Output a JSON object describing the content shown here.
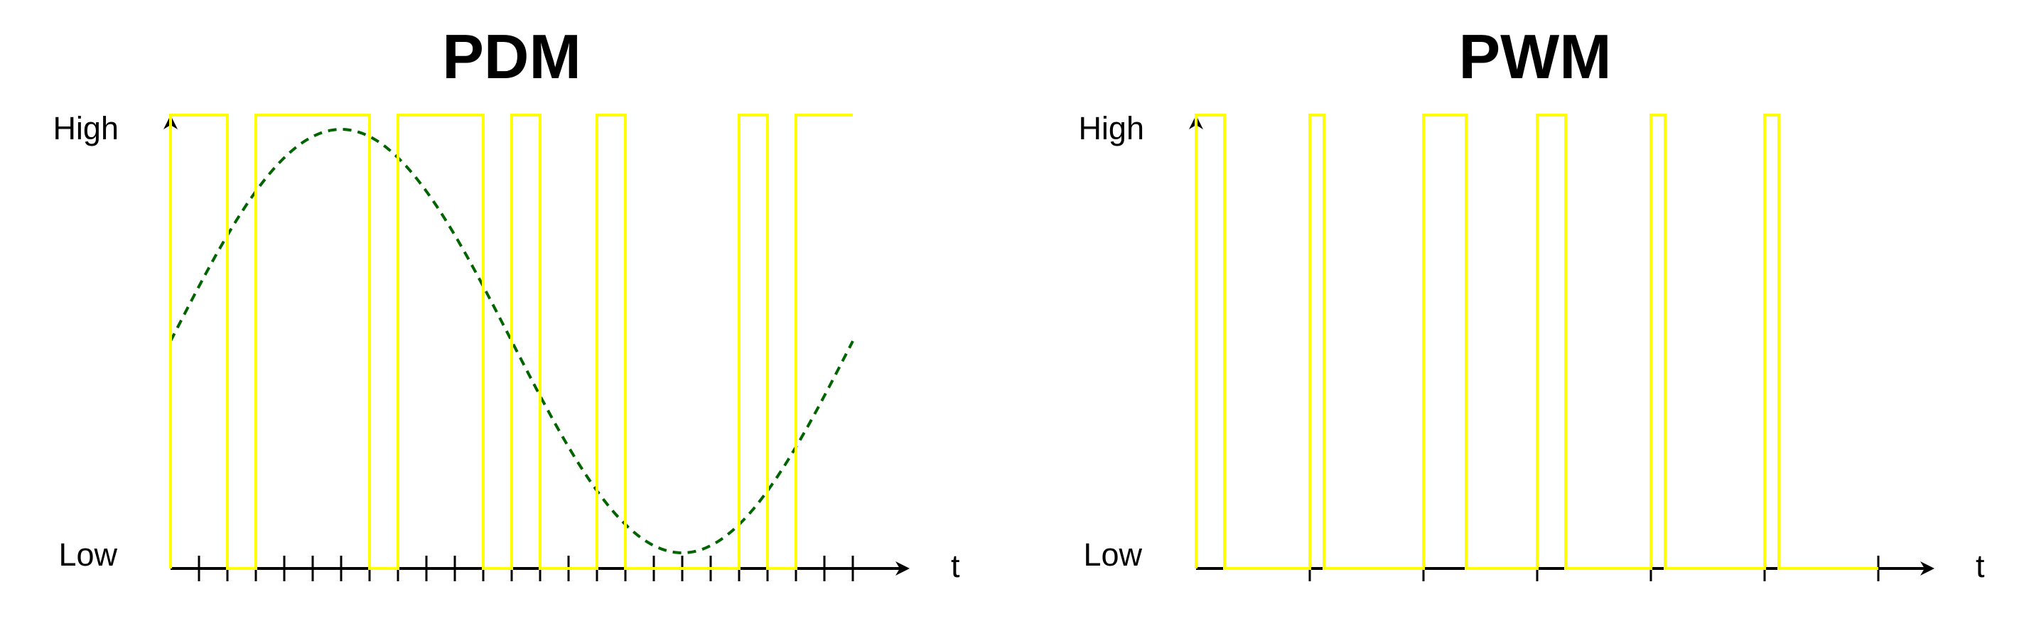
{
  "colors": {
    "axis": "#000000",
    "pulse_signal": "#ffff00",
    "reference_wave": "#006400",
    "background": "#ffffff"
  },
  "panels": [
    {
      "id": "pdm",
      "title": "PDM",
      "y_high_label": "High",
      "y_low_label": "Low",
      "x_axis_label": "t",
      "tick_count": 24,
      "signal_bits": [
        1,
        1,
        0,
        1,
        1,
        1,
        1,
        0,
        1,
        1,
        1,
        0,
        1,
        0,
        0,
        1,
        0,
        0,
        0,
        0,
        1,
        0,
        1,
        1
      ],
      "reference_wave": "sine, one period, dashed"
    },
    {
      "id": "pwm",
      "title": "PWM",
      "y_high_label": "High",
      "y_low_label": "Low",
      "x_axis_label": "t",
      "tick_count": 6,
      "duty_cycles": [
        0.25,
        0.125,
        0.375,
        0.25,
        0.125,
        0.125
      ]
    }
  ]
}
